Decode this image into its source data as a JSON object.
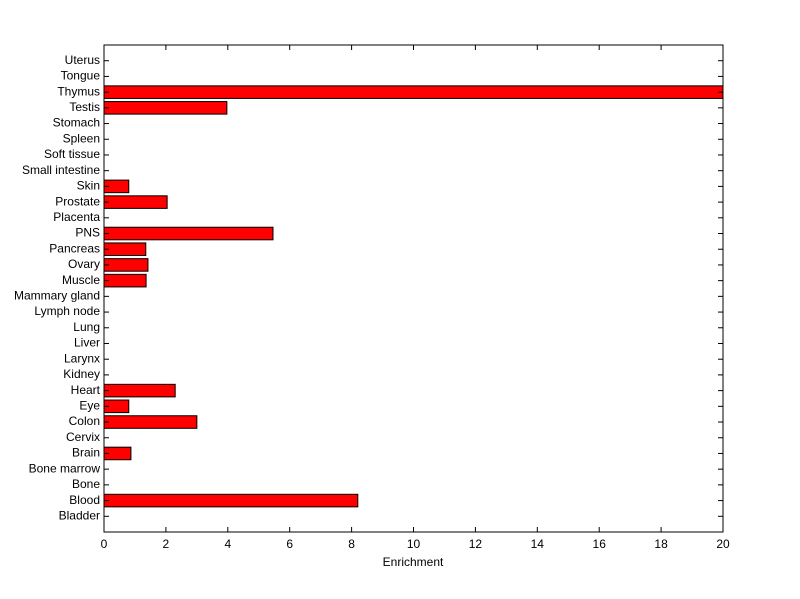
{
  "chart_data": {
    "type": "barh",
    "xlabel": "Enrichment",
    "categories": [
      "Bladder",
      "Blood",
      "Bone",
      "Bone marrow",
      "Brain",
      "Cervix",
      "Colon",
      "Eye",
      "Heart",
      "Kidney",
      "Larynx",
      "Liver",
      "Lung",
      "Lymph node",
      "Mammary gland",
      "Muscle",
      "Ovary",
      "Pancreas",
      "PNS",
      "Placenta",
      "Prostate",
      "Skin",
      "Small intestine",
      "Soft tissue",
      "Spleen",
      "Stomach",
      "Testis",
      "Thymus",
      "Tongue",
      "Uterus"
    ],
    "values": [
      0,
      8.2,
      0,
      0,
      0.87,
      0,
      3.0,
      0.8,
      2.3,
      0,
      0,
      0,
      0,
      0,
      0,
      1.36,
      1.42,
      1.35,
      5.46,
      0,
      2.04,
      0.8,
      0,
      0,
      0,
      0,
      3.97,
      20,
      0,
      0
    ],
    "color": "#ff0000",
    "xlim": [
      0,
      20
    ],
    "xticks": [
      0,
      2,
      4,
      6,
      8,
      10,
      12,
      14,
      16,
      18,
      20
    ]
  }
}
